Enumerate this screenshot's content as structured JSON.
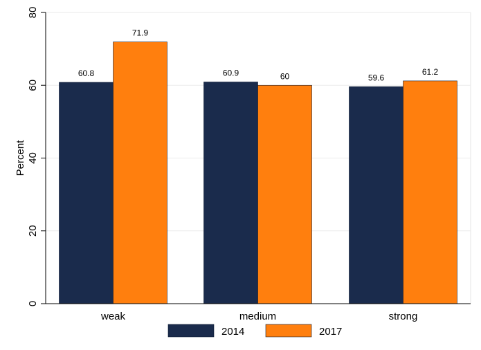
{
  "chart_data": {
    "type": "bar",
    "categories": [
      "weak",
      "medium",
      "strong"
    ],
    "series": [
      {
        "name": "2014",
        "values": [
          60.8,
          60.9,
          59.6
        ],
        "color": "#1a2b4c"
      },
      {
        "name": "2017",
        "values": [
          71.9,
          60,
          61.2
        ],
        "color": "#ff7f0e"
      }
    ],
    "value_labels": [
      [
        "60.8",
        "60.9",
        "59.6"
      ],
      [
        "71.9",
        "60",
        "61.2"
      ]
    ],
    "title": "",
    "xlabel": "",
    "ylabel": "Percent",
    "ylim": [
      0,
      80
    ],
    "yticks": [
      "0",
      "20",
      "40",
      "60",
      "80"
    ],
    "grid": true,
    "legend_position": "bottom"
  }
}
